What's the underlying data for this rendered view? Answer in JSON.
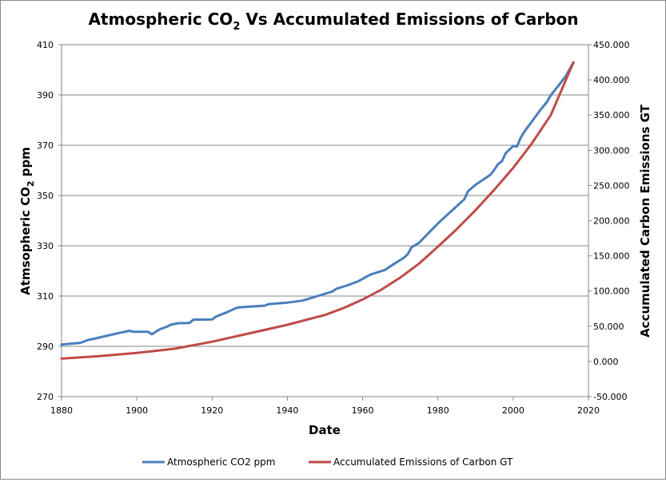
{
  "chart_data": {
    "type": "line",
    "title": {
      "prefix": "Atmospheric CO",
      "subscript": "2",
      "suffix": " Vs Accumulated Emissions of Carbon"
    },
    "xlabel": "Date",
    "ylabel_left": {
      "prefix": "Atmsopheric CO",
      "subscript": "2",
      "suffix": " ppm"
    },
    "ylabel_right": "Accumulated Carbon Emissions GT",
    "xlim": [
      1880,
      2020
    ],
    "ylim_left": [
      270,
      410
    ],
    "ylim_right": [
      -50,
      450
    ],
    "x_ticks": [
      "1880",
      "1900",
      "1920",
      "1940",
      "1960",
      "1980",
      "2000",
      "2020"
    ],
    "y_left_ticks": [
      "270",
      "290",
      "310",
      "330",
      "350",
      "370",
      "390",
      "410"
    ],
    "y_right_ticks": [
      "-50.000",
      "0.000",
      "50.000",
      "100.000",
      "150.000",
      "200.000",
      "250.000",
      "300.000",
      "350.000",
      "400.000",
      "450.000"
    ],
    "grid": true,
    "legend_position": "bottom",
    "series": [
      {
        "name": "Atmospheric CO2 ppm",
        "axis": "left",
        "color": "#4a7ebb",
        "x": [
          1880,
          1885,
          1887,
          1890,
          1895,
          1898,
          1899,
          1903,
          1904,
          1906,
          1908,
          1909,
          1911,
          1914,
          1915,
          1920,
          1921,
          1924,
          1926,
          1927,
          1930,
          1934,
          1935,
          1940,
          1944,
          1948,
          1952,
          1953,
          1956,
          1959,
          1962,
          1966,
          1967,
          1969,
          1971,
          1972,
          1973,
          1975,
          1978,
          1980,
          1983,
          1986,
          1987,
          1988,
          1990,
          1992,
          1994,
          1995,
          1996,
          1997,
          1998,
          2000,
          2001,
          2002,
          2003,
          2005,
          2007,
          2009,
          2010,
          2012,
          2014,
          2016
        ],
        "y": [
          290.7,
          291.4,
          292.5,
          293.5,
          295.2,
          296.2,
          295.8,
          295.8,
          294.8,
          296.7,
          297.8,
          298.6,
          299.2,
          299.3,
          300.6,
          300.7,
          301.8,
          303.6,
          305.0,
          305.5,
          305.8,
          306.2,
          306.8,
          307.4,
          308.2,
          310.0,
          311.8,
          312.9,
          314.3,
          316.0,
          318.5,
          320.4,
          321.5,
          323.4,
          325.3,
          326.7,
          329.4,
          331.2,
          335.8,
          338.9,
          343.0,
          347.1,
          348.5,
          351.7,
          354.3,
          356.3,
          358.3,
          360.3,
          362.5,
          363.6,
          366.8,
          369.7,
          369.5,
          373.0,
          375.5,
          379.5,
          383.6,
          387.3,
          389.9,
          393.6,
          397.6,
          402.9
        ]
      },
      {
        "name": "Accumulated Emissions of Carbon GT",
        "axis": "right",
        "color": "#be4b48",
        "x": [
          1880,
          1890,
          1900,
          1910,
          1920,
          1930,
          1940,
          1950,
          1955,
          1960,
          1965,
          1970,
          1975,
          1980,
          1985,
          1990,
          1995,
          2000,
          2005,
          2010,
          2016
        ],
        "y": [
          4.0,
          7.5,
          12.0,
          18.0,
          28.0,
          40.0,
          52.0,
          66.0,
          76.0,
          88.0,
          102.0,
          119.0,
          139.0,
          163.0,
          188.0,
          215.0,
          244.0,
          275.0,
          310.0,
          350.0,
          425.0
        ]
      }
    ]
  }
}
